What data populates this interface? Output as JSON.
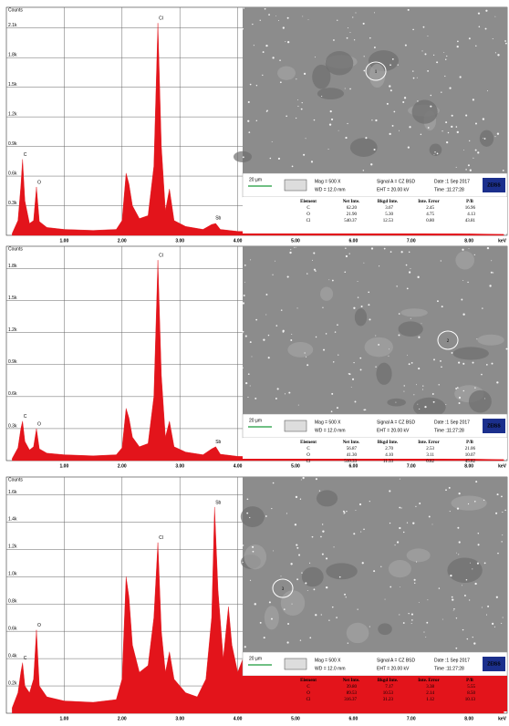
{
  "chart_data": [
    {
      "type": "area",
      "y_label": "Counts",
      "x_label": "keV",
      "color": "#e3141b",
      "grid": true,
      "xlim": [
        0,
        8.66
      ],
      "ylim": [
        0,
        2310
      ],
      "xticks": [
        {
          "value": 1,
          "label": "1.00"
        },
        {
          "value": 2,
          "label": "2.00"
        },
        {
          "value": 3,
          "label": "3.00"
        },
        {
          "value": 4,
          "label": "4.00"
        },
        {
          "value": 5,
          "label": "5.00"
        },
        {
          "value": 6,
          "label": "6.00"
        },
        {
          "value": 7,
          "label": "7.00"
        },
        {
          "value": 8,
          "label": "8.00"
        }
      ],
      "yticks": [
        {
          "value": 300,
          "label": "0.3k"
        },
        {
          "value": 600,
          "label": "0.6k"
        },
        {
          "value": 900,
          "label": "0.9k"
        },
        {
          "value": 1200,
          "label": "1.2k"
        },
        {
          "value": 1500,
          "label": "1.5k"
        },
        {
          "value": 1800,
          "label": "1.8k"
        },
        {
          "value": 2100,
          "label": "2.1k"
        }
      ],
      "x": [
        0.1,
        0.2,
        0.25,
        0.28,
        0.32,
        0.4,
        0.47,
        0.52,
        0.57,
        0.7,
        1.0,
        1.5,
        1.9,
        2.0,
        2.07,
        2.12,
        2.18,
        2.3,
        2.45,
        2.55,
        2.62,
        2.68,
        2.75,
        2.82,
        2.9,
        3.1,
        3.4,
        3.55,
        3.62,
        3.7,
        4.0,
        5.0,
        6.0,
        7.0,
        8.0,
        8.6
      ],
      "values": [
        20,
        150,
        500,
        770,
        350,
        120,
        150,
        490,
        140,
        80,
        60,
        50,
        60,
        150,
        630,
        520,
        300,
        170,
        200,
        700,
        2150,
        900,
        250,
        470,
        150,
        90,
        60,
        110,
        120,
        60,
        40,
        30,
        25,
        20,
        15,
        10
      ],
      "annotations": [
        {
          "text": "C",
          "x": 0.28,
          "y": 770
        },
        {
          "text": "O",
          "x": 0.52,
          "y": 490
        },
        {
          "text": "Cl",
          "x": 2.62,
          "y": 2150
        },
        {
          "text": "Sb",
          "x": 3.6,
          "y": 130
        }
      ],
      "inset": {
        "marker": "1",
        "scale_bar": "20 µm",
        "mag": "Mag =  500 X",
        "wd": "WD = 12.0 mm",
        "signal": "Signal A = CZ BSD",
        "eht": "EHT = 20.00 kV",
        "date": "Date :1 Sep 2017",
        "time": "Time :11:27:28",
        "brand": "ZEISS"
      },
      "table": {
        "header": [
          "Element",
          "Net Inte.",
          "Bkgd Inte.",
          "Inte. Error",
          "P/B"
        ],
        "rows": [
          [
            "C",
            "62.20",
            "3.67",
            "2.45",
            "16.96"
          ],
          [
            "O",
            "21.90",
            "5.30",
            "4.75",
            "4.13"
          ],
          [
            "Cl",
            "540.37",
            "12.53",
            "0.80",
            "43.81"
          ]
        ]
      }
    },
    {
      "type": "area",
      "y_label": "Counts",
      "x_label": "keV",
      "color": "#e3141b",
      "grid": true,
      "xlim": [
        0,
        8.66
      ],
      "ylim": [
        0,
        2010
      ],
      "xticks": [
        {
          "value": 1,
          "label": "1.00"
        },
        {
          "value": 2,
          "label": "2.00"
        },
        {
          "value": 3,
          "label": "3.00"
        },
        {
          "value": 4,
          "label": "4.00"
        },
        {
          "value": 5,
          "label": "5.00"
        },
        {
          "value": 6,
          "label": "6.00"
        },
        {
          "value": 7,
          "label": "7.00"
        },
        {
          "value": 8,
          "label": "8.00"
        }
      ],
      "yticks": [
        {
          "value": 300,
          "label": "0.3k"
        },
        {
          "value": 600,
          "label": "0.6k"
        },
        {
          "value": 900,
          "label": "0.9k"
        },
        {
          "value": 1200,
          "label": "1.2k"
        },
        {
          "value": 1500,
          "label": "1.5k"
        },
        {
          "value": 1800,
          "label": "1.8k"
        }
      ],
      "x": [
        0.1,
        0.2,
        0.25,
        0.28,
        0.32,
        0.4,
        0.47,
        0.52,
        0.57,
        0.7,
        1.0,
        1.5,
        1.9,
        2.0,
        2.07,
        2.12,
        2.18,
        2.3,
        2.45,
        2.55,
        2.62,
        2.68,
        2.75,
        2.82,
        2.9,
        3.1,
        3.4,
        3.55,
        3.62,
        3.7,
        4.0,
        5.0,
        6.0,
        7.0,
        8.0,
        8.6
      ],
      "values": [
        20,
        120,
        300,
        370,
        180,
        100,
        130,
        300,
        110,
        70,
        55,
        45,
        55,
        120,
        490,
        400,
        220,
        130,
        160,
        600,
        1880,
        800,
        220,
        370,
        130,
        80,
        55,
        110,
        130,
        60,
        40,
        30,
        25,
        20,
        15,
        10
      ],
      "annotations": [
        {
          "text": "C",
          "x": 0.28,
          "y": 370
        },
        {
          "text": "O",
          "x": 0.52,
          "y": 300
        },
        {
          "text": "Cl",
          "x": 2.62,
          "y": 1880
        },
        {
          "text": "Sb",
          "x": 3.6,
          "y": 130
        }
      ],
      "inset": {
        "marker": "2",
        "scale_bar": "20 µm",
        "mag": "Mag =  500 X",
        "wd": "WD = 12.0 mm",
        "signal": "Signal A = CZ BSD",
        "eht": "EHT = 20.00 kV",
        "date": "Date :1 Sep 2017",
        "time": "Time :11:27:28",
        "brand": "ZEISS"
      },
      "table": {
        "header": [
          "Element",
          "Net Inte.",
          "Bkgd Inte.",
          "Inte. Error",
          "P/B"
        ],
        "rows": [
          [
            "C",
            "56.87",
            "2.70",
            "2.53",
            "21.06"
          ],
          [
            "O",
            "41.30",
            "4.10",
            "3.11",
            "10.07"
          ],
          [
            "Cl",
            "510.33",
            "11.33",
            "0.82",
            "45.82"
          ]
        ]
      }
    },
    {
      "type": "area",
      "y_label": "Counts",
      "x_label": "keV",
      "color": "#e3141b",
      "grid": true,
      "xlim": [
        0,
        8.66
      ],
      "ylim": [
        0,
        1730
      ],
      "xticks": [
        {
          "value": 1,
          "label": "1.00"
        },
        {
          "value": 2,
          "label": "2.00"
        },
        {
          "value": 3,
          "label": "3.00"
        },
        {
          "value": 4,
          "label": "4.00"
        },
        {
          "value": 5,
          "label": "5.00"
        },
        {
          "value": 6,
          "label": "6.00"
        },
        {
          "value": 7,
          "label": "7.00"
        },
        {
          "value": 8,
          "label": "8.00"
        }
      ],
      "yticks": [
        {
          "value": 200,
          "label": "0.2k"
        },
        {
          "value": 400,
          "label": "0.4k"
        },
        {
          "value": 600,
          "label": "0.6k"
        },
        {
          "value": 800,
          "label": "0.8k"
        },
        {
          "value": 1000,
          "label": "1.0k"
        },
        {
          "value": 1200,
          "label": "1.2k"
        },
        {
          "value": 1400,
          "label": "1.4k"
        },
        {
          "value": 1600,
          "label": "1.6k"
        }
      ],
      "x": [
        0.1,
        0.2,
        0.25,
        0.28,
        0.32,
        0.4,
        0.47,
        0.52,
        0.57,
        0.7,
        1.0,
        1.5,
        1.9,
        2.0,
        2.07,
        2.12,
        2.18,
        2.3,
        2.45,
        2.55,
        2.62,
        2.68,
        2.75,
        2.82,
        2.9,
        3.1,
        3.3,
        3.45,
        3.55,
        3.6,
        3.66,
        3.75,
        3.84,
        3.9,
        4.0,
        4.1,
        4.2,
        4.4,
        4.7,
        5.0,
        6.0,
        7.0,
        8.0,
        8.6
      ],
      "values": [
        40,
        150,
        300,
        370,
        200,
        150,
        250,
        610,
        200,
        120,
        90,
        80,
        100,
        250,
        1000,
        850,
        500,
        300,
        350,
        700,
        1250,
        600,
        300,
        450,
        250,
        150,
        120,
        250,
        700,
        1510,
        900,
        400,
        780,
        500,
        300,
        410,
        200,
        120,
        80,
        60,
        40,
        30,
        25,
        20
      ],
      "annotations": [
        {
          "text": "C",
          "x": 0.28,
          "y": 370
        },
        {
          "text": "O",
          "x": 0.52,
          "y": 610
        },
        {
          "text": "Cl",
          "x": 2.62,
          "y": 1250
        },
        {
          "text": "Sb",
          "x": 3.6,
          "y": 1510
        }
      ],
      "inset": {
        "marker": "3",
        "scale_bar": "20 µm",
        "mag": "Mag =  500 X",
        "wd": "WD = 12.0 mm",
        "signal": "Signal A = CZ BSD",
        "eht": "EHT = 20.00 kV",
        "date": "Date :1 Sep 2017",
        "time": "Time :11:27:28",
        "brand": "ZEISS"
      },
      "table": {
        "header": [
          "Element",
          "Net Inte.",
          "Bkgd Inte.",
          "Inte. Error",
          "P/B"
        ],
        "rows": [
          [
            "C",
            "39.80",
            "7.17",
            "3.38",
            "5.55"
          ],
          [
            "O",
            "89.53",
            "10.53",
            "2.14",
            "8.50"
          ],
          [
            "Cl",
            "316.37",
            "31.23",
            "1.12",
            "10.13"
          ]
        ]
      }
    }
  ]
}
